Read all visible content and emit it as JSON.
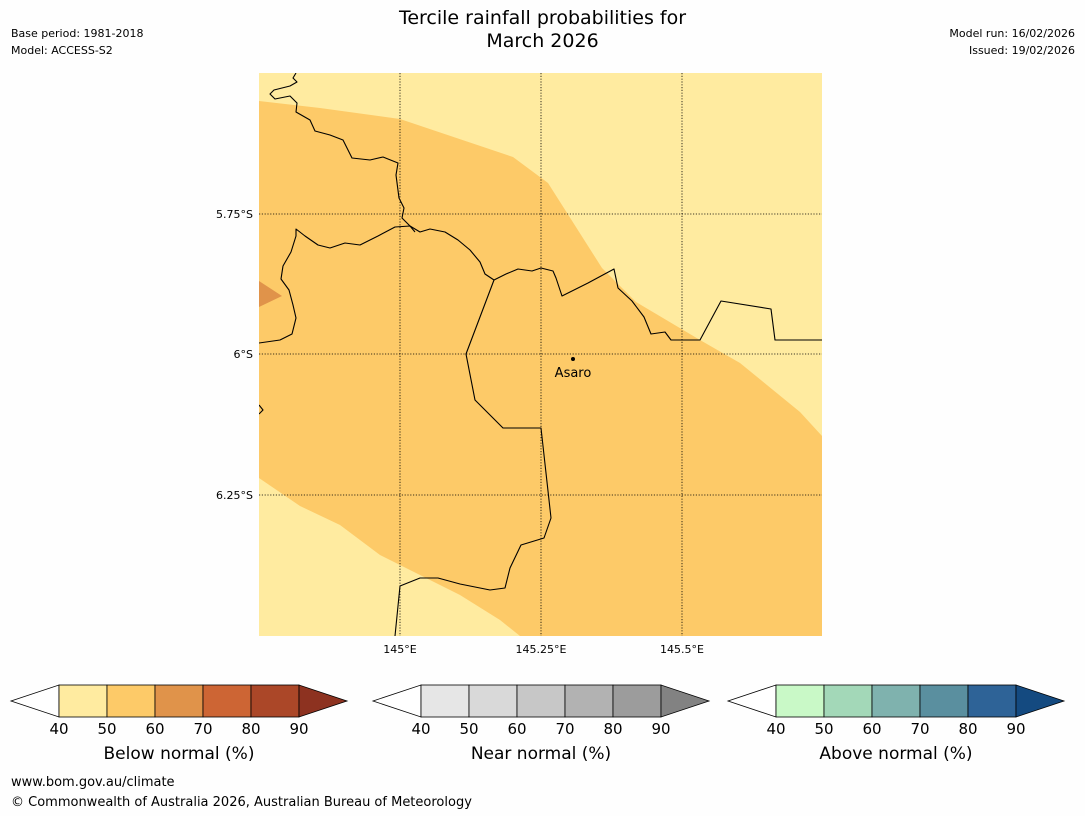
{
  "header": {
    "title_line1": "Tercile rainfall probabilities for",
    "title_line2": "March 2026",
    "base_period": "Base period: 1981-2018",
    "model": "Model: ACCESS-S2",
    "model_run": "Model run: 16/02/2026",
    "issued": "Issued: 19/02/2026"
  },
  "map": {
    "lat_labels": [
      "5.75°S",
      "6°S",
      "6.25°S"
    ],
    "lon_labels": [
      "145°E",
      "145.25°E",
      "145.5°E"
    ],
    "place": "Asaro",
    "colors": {
      "light": "#ffeba0",
      "mid": "#fdca68",
      "dark": "#e0934a"
    }
  },
  "colorbars": [
    {
      "label": "Below normal (%)",
      "ticks": [
        "40",
        "50",
        "60",
        "70",
        "80",
        "90"
      ],
      "colors": [
        "#ffeba0",
        "#fdca68",
        "#e0934a",
        "#cd6534",
        "#ab4728",
        "#8d3220"
      ]
    },
    {
      "label": "Near normal (%)",
      "ticks": [
        "40",
        "50",
        "60",
        "70",
        "80",
        "90"
      ],
      "colors": [
        "#e6e6e6",
        "#d9d9d9",
        "#c7c7c7",
        "#b2b2b2",
        "#9c9c9c",
        "#828282"
      ]
    },
    {
      "label": "Above normal (%)",
      "ticks": [
        "40",
        "50",
        "60",
        "70",
        "80",
        "90"
      ],
      "colors": [
        "#c9f9c7",
        "#a3d8b8",
        "#7fb2ae",
        "#5a8f9f",
        "#2e6397",
        "#144a80"
      ]
    }
  ],
  "footer": {
    "url": "www.bom.gov.au/climate",
    "copyright": "© Commonwealth of Australia 2026, Australian Bureau of Meteorology"
  }
}
